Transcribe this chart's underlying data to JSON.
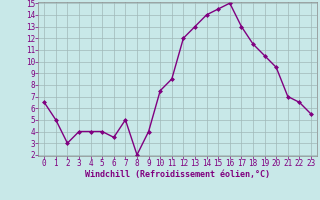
{
  "x": [
    0,
    1,
    2,
    3,
    4,
    5,
    6,
    7,
    8,
    9,
    10,
    11,
    12,
    13,
    14,
    15,
    16,
    17,
    18,
    19,
    20,
    21,
    22,
    23
  ],
  "y": [
    6.5,
    5.0,
    3.0,
    4.0,
    4.0,
    4.0,
    3.5,
    5.0,
    2.0,
    4.0,
    7.5,
    8.5,
    12.0,
    13.0,
    14.0,
    14.5,
    15.0,
    13.0,
    11.5,
    10.5,
    9.5,
    7.0,
    6.5,
    5.5
  ],
  "line_color": "#800080",
  "marker": "D",
  "marker_size": 2.0,
  "bg_color": "#c8e8e8",
  "grid_color": "#a0b8b8",
  "xlabel": "Windchill (Refroidissement éolien,°C)",
  "ylim": [
    2,
    15
  ],
  "xlim": [
    -0.5,
    23.5
  ],
  "yticks": [
    2,
    3,
    4,
    5,
    6,
    7,
    8,
    9,
    10,
    11,
    12,
    13,
    14,
    15
  ],
  "xticks": [
    0,
    1,
    2,
    3,
    4,
    5,
    6,
    7,
    8,
    9,
    10,
    11,
    12,
    13,
    14,
    15,
    16,
    17,
    18,
    19,
    20,
    21,
    22,
    23
  ],
  "tick_color": "#800080",
  "label_color": "#800080",
  "font_size_tick": 5.5,
  "font_size_label": 6.0,
  "line_width": 1.0
}
